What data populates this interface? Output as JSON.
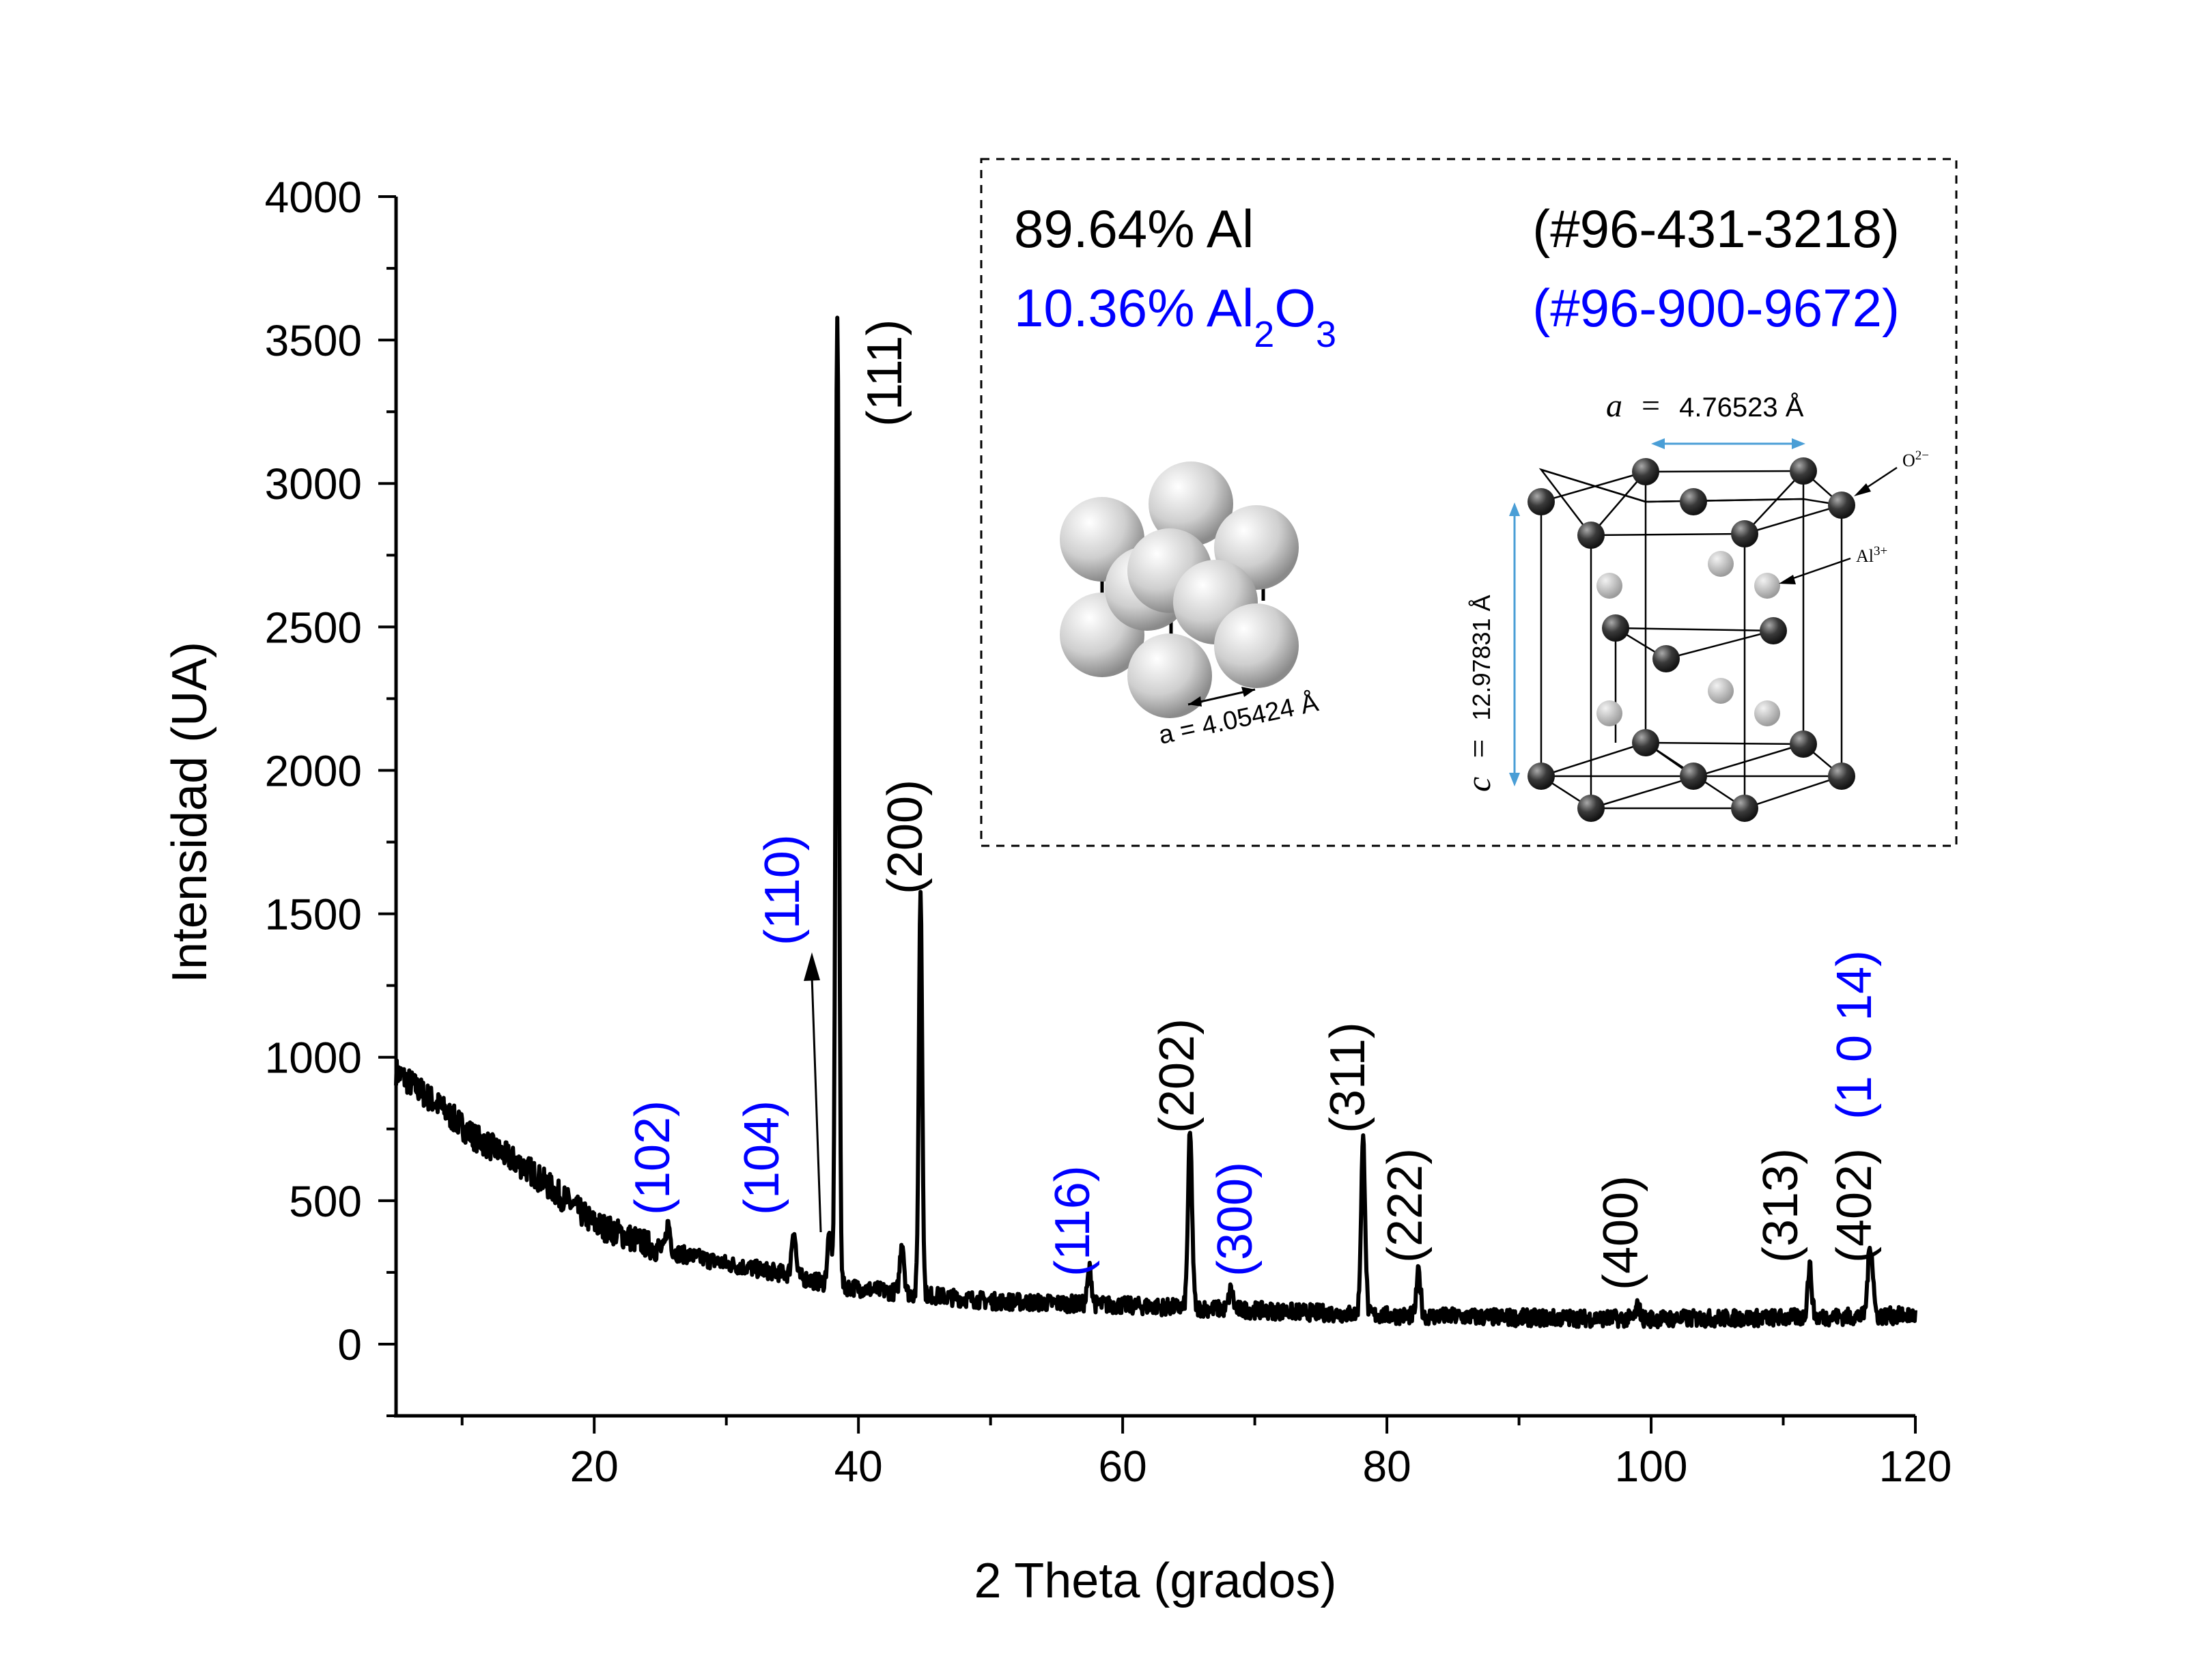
{
  "chart_data": {
    "type": "line",
    "xlabel": "2 Theta (grados)",
    "ylabel": "Intensidad (UA)",
    "xlim": [
      5,
      120
    ],
    "ylim": [
      -250,
      4000
    ],
    "xticks": [
      20,
      40,
      60,
      80,
      100,
      120
    ],
    "yticks": [
      0,
      500,
      1000,
      1500,
      2000,
      2500,
      3000,
      3500,
      4000
    ],
    "background": {
      "points": [
        [
          5,
          950
        ],
        [
          8,
          840
        ],
        [
          11,
          720
        ],
        [
          15,
          610
        ],
        [
          20,
          420
        ],
        [
          25,
          330
        ],
        [
          30,
          280
        ],
        [
          35,
          240
        ],
        [
          38,
          205
        ],
        [
          42,
          185
        ],
        [
          50,
          150
        ],
        [
          60,
          135
        ],
        [
          70,
          118
        ],
        [
          80,
          100
        ],
        [
          90,
          92
        ],
        [
          100,
          88
        ],
        [
          110,
          92
        ],
        [
          120,
          100
        ]
      ],
      "noise": 30
    },
    "peaks": [
      {
        "x": 25.6,
        "y": 420,
        "label": "(102)",
        "phase": "Al2O3"
      },
      {
        "x": 35.1,
        "y": 400,
        "label": "(104)",
        "phase": "Al2O3"
      },
      {
        "x": 37.8,
        "y": 380,
        "label": "(110)",
        "phase": "Al2O3"
      },
      {
        "x": 38.4,
        "y": 3580,
        "label": "(111)",
        "phase": "Al"
      },
      {
        "x": 43.3,
        "y": 360,
        "label": "",
        "phase": "Al2O3"
      },
      {
        "x": 44.7,
        "y": 1580,
        "label": "(200)",
        "phase": "Al"
      },
      {
        "x": 57.5,
        "y": 260,
        "label": "(116)",
        "phase": "Al2O3"
      },
      {
        "x": 65.1,
        "y": 730,
        "label": "(202)",
        "phase": "Al"
      },
      {
        "x": 68.2,
        "y": 190,
        "label": "(300)",
        "phase": "Al2O3"
      },
      {
        "x": 78.2,
        "y": 710,
        "label": "(311)",
        "phase": "Al"
      },
      {
        "x": 82.4,
        "y": 250,
        "label": "(222)",
        "phase": "Al"
      },
      {
        "x": 99.0,
        "y": 130,
        "label": "(400)",
        "phase": "Al"
      },
      {
        "x": 112.0,
        "y": 270,
        "label": "(313)",
        "phase": "Al"
      },
      {
        "x": 116.5,
        "y": 250,
        "label": "(402)",
        "phase": "Al"
      },
      {
        "x": 116.7,
        "y": 250,
        "label": "(1 0 14)",
        "phase": "Al2O3"
      }
    ],
    "colors": {
      "Al": "#000000",
      "Al2O3": "#0000ff"
    },
    "grid": false,
    "legend": {
      "line1_pct": "89.64% Al",
      "line1_ref": "(#96-431-3218)",
      "line2_pct_prefix": "10.36% Al",
      "line2_sub1": "2",
      "line2_mid": "O",
      "line2_sub2": "3",
      "line2_ref": "(#96-900-9672)"
    },
    "inset": {
      "fcc_lattice": "a = 4.05424 Å",
      "hcp_a_symbol": "a",
      "hcp_eq": "=",
      "hcp_a_value": "4.76523 Å",
      "hcp_c_symbol": "c",
      "hcp_c_value": "12.97831 Å",
      "o_ion": "O",
      "o_charge": "2−",
      "al_ion": "Al",
      "al_charge": "3+"
    }
  }
}
